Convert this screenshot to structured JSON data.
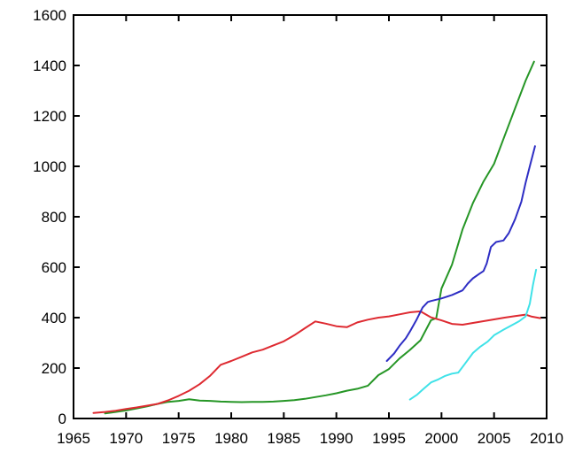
{
  "page": {
    "background_color": "#ffffff"
  },
  "chart_data": {
    "type": "line",
    "title": "",
    "xlabel": "",
    "ylabel": "",
    "xlim": [
      1965,
      2010
    ],
    "ylim": [
      0,
      1600
    ],
    "x_ticks": [
      1965,
      1970,
      1975,
      1980,
      1985,
      1990,
      1995,
      2000,
      2005,
      2010
    ],
    "y_ticks": [
      0,
      200,
      400,
      600,
      800,
      1000,
      1200,
      1400,
      1600
    ],
    "grid": false,
    "legend_position": "none",
    "axis_color": "#000000",
    "tick_style": "inward-mirrored",
    "series": [
      {
        "name": "green-line",
        "color": "#269626",
        "points": [
          [
            1968,
            20
          ],
          [
            1969,
            26
          ],
          [
            1970,
            32
          ],
          [
            1971,
            40
          ],
          [
            1972,
            48
          ],
          [
            1973,
            58
          ],
          [
            1974,
            66
          ],
          [
            1975,
            70
          ],
          [
            1976,
            76
          ],
          [
            1977,
            71
          ],
          [
            1978,
            70
          ],
          [
            1979,
            67
          ],
          [
            1980,
            66
          ],
          [
            1981,
            65
          ],
          [
            1982,
            66
          ],
          [
            1983,
            66
          ],
          [
            1984,
            67
          ],
          [
            1985,
            70
          ],
          [
            1986,
            73
          ],
          [
            1987,
            78
          ],
          [
            1988,
            85
          ],
          [
            1989,
            92
          ],
          [
            1990,
            100
          ],
          [
            1991,
            110
          ],
          [
            1992,
            118
          ],
          [
            1993,
            130
          ],
          [
            1994,
            172
          ],
          [
            1995,
            196
          ],
          [
            1996,
            238
          ],
          [
            1997,
            272
          ],
          [
            1998,
            310
          ],
          [
            1999,
            390
          ],
          [
            1999.5,
            398
          ],
          [
            2000,
            515
          ],
          [
            2001,
            610
          ],
          [
            2002,
            750
          ],
          [
            2003,
            855
          ],
          [
            2004,
            940
          ],
          [
            2005,
            1010
          ],
          [
            2006,
            1120
          ],
          [
            2007,
            1230
          ],
          [
            2008,
            1340
          ],
          [
            2008.8,
            1415
          ]
        ]
      },
      {
        "name": "red-line",
        "color": "#de2a31",
        "points": [
          [
            1966.9,
            22
          ],
          [
            1968,
            26
          ],
          [
            1969,
            31
          ],
          [
            1970,
            38
          ],
          [
            1971,
            44
          ],
          [
            1972,
            51
          ],
          [
            1973,
            58
          ],
          [
            1974,
            72
          ],
          [
            1975,
            90
          ],
          [
            1976,
            110
          ],
          [
            1977,
            136
          ],
          [
            1978,
            170
          ],
          [
            1979,
            213
          ],
          [
            1980,
            228
          ],
          [
            1981,
            245
          ],
          [
            1982,
            262
          ],
          [
            1983,
            273
          ],
          [
            1984,
            290
          ],
          [
            1985,
            306
          ],
          [
            1986,
            330
          ],
          [
            1987,
            358
          ],
          [
            1988,
            385
          ],
          [
            1989,
            376
          ],
          [
            1990,
            366
          ],
          [
            1991,
            362
          ],
          [
            1992,
            381
          ],
          [
            1993,
            392
          ],
          [
            1994,
            400
          ],
          [
            1995,
            405
          ],
          [
            1996,
            413
          ],
          [
            1997,
            421
          ],
          [
            1998,
            425
          ],
          [
            1999,
            401
          ],
          [
            2000,
            389
          ],
          [
            2001,
            375
          ],
          [
            2002,
            372
          ],
          [
            2003,
            379
          ],
          [
            2004,
            386
          ],
          [
            2005,
            393
          ],
          [
            2006,
            400
          ],
          [
            2007,
            406
          ],
          [
            2008,
            412
          ],
          [
            2008.6,
            404
          ],
          [
            2009.4,
            398
          ]
        ]
      },
      {
        "name": "blue-line",
        "color": "#2e2ec4",
        "points": [
          [
            1994.8,
            228
          ],
          [
            1995.5,
            258
          ],
          [
            1996,
            288
          ],
          [
            1996.6,
            318
          ],
          [
            1997,
            345
          ],
          [
            1997.6,
            390
          ],
          [
            1998.2,
            440
          ],
          [
            1998.7,
            462
          ],
          [
            1999,
            466
          ],
          [
            2000,
            476
          ],
          [
            2001,
            490
          ],
          [
            2002,
            508
          ],
          [
            2002.5,
            535
          ],
          [
            2003,
            556
          ],
          [
            2003.6,
            574
          ],
          [
            2004,
            585
          ],
          [
            2004.3,
            615
          ],
          [
            2004.7,
            680
          ],
          [
            2005.2,
            700
          ],
          [
            2005.9,
            706
          ],
          [
            2006.4,
            735
          ],
          [
            2007,
            790
          ],
          [
            2007.6,
            860
          ],
          [
            2008,
            935
          ],
          [
            2008.4,
            1000
          ],
          [
            2008.9,
            1080
          ]
        ]
      },
      {
        "name": "cyan-line",
        "color": "#40e2e8",
        "points": [
          [
            1997,
            75
          ],
          [
            1997.7,
            95
          ],
          [
            1998.3,
            118
          ],
          [
            1999,
            143
          ],
          [
            1999.7,
            155
          ],
          [
            2000.3,
            168
          ],
          [
            2001,
            178
          ],
          [
            2001.6,
            182
          ],
          [
            2002.2,
            215
          ],
          [
            2003,
            260
          ],
          [
            2003.7,
            285
          ],
          [
            2004.4,
            305
          ],
          [
            2005,
            330
          ],
          [
            2005.8,
            350
          ],
          [
            2006.6,
            368
          ],
          [
            2007.4,
            386
          ],
          [
            2008,
            405
          ],
          [
            2008.4,
            455
          ],
          [
            2008.7,
            530
          ],
          [
            2009,
            590
          ]
        ]
      }
    ]
  }
}
